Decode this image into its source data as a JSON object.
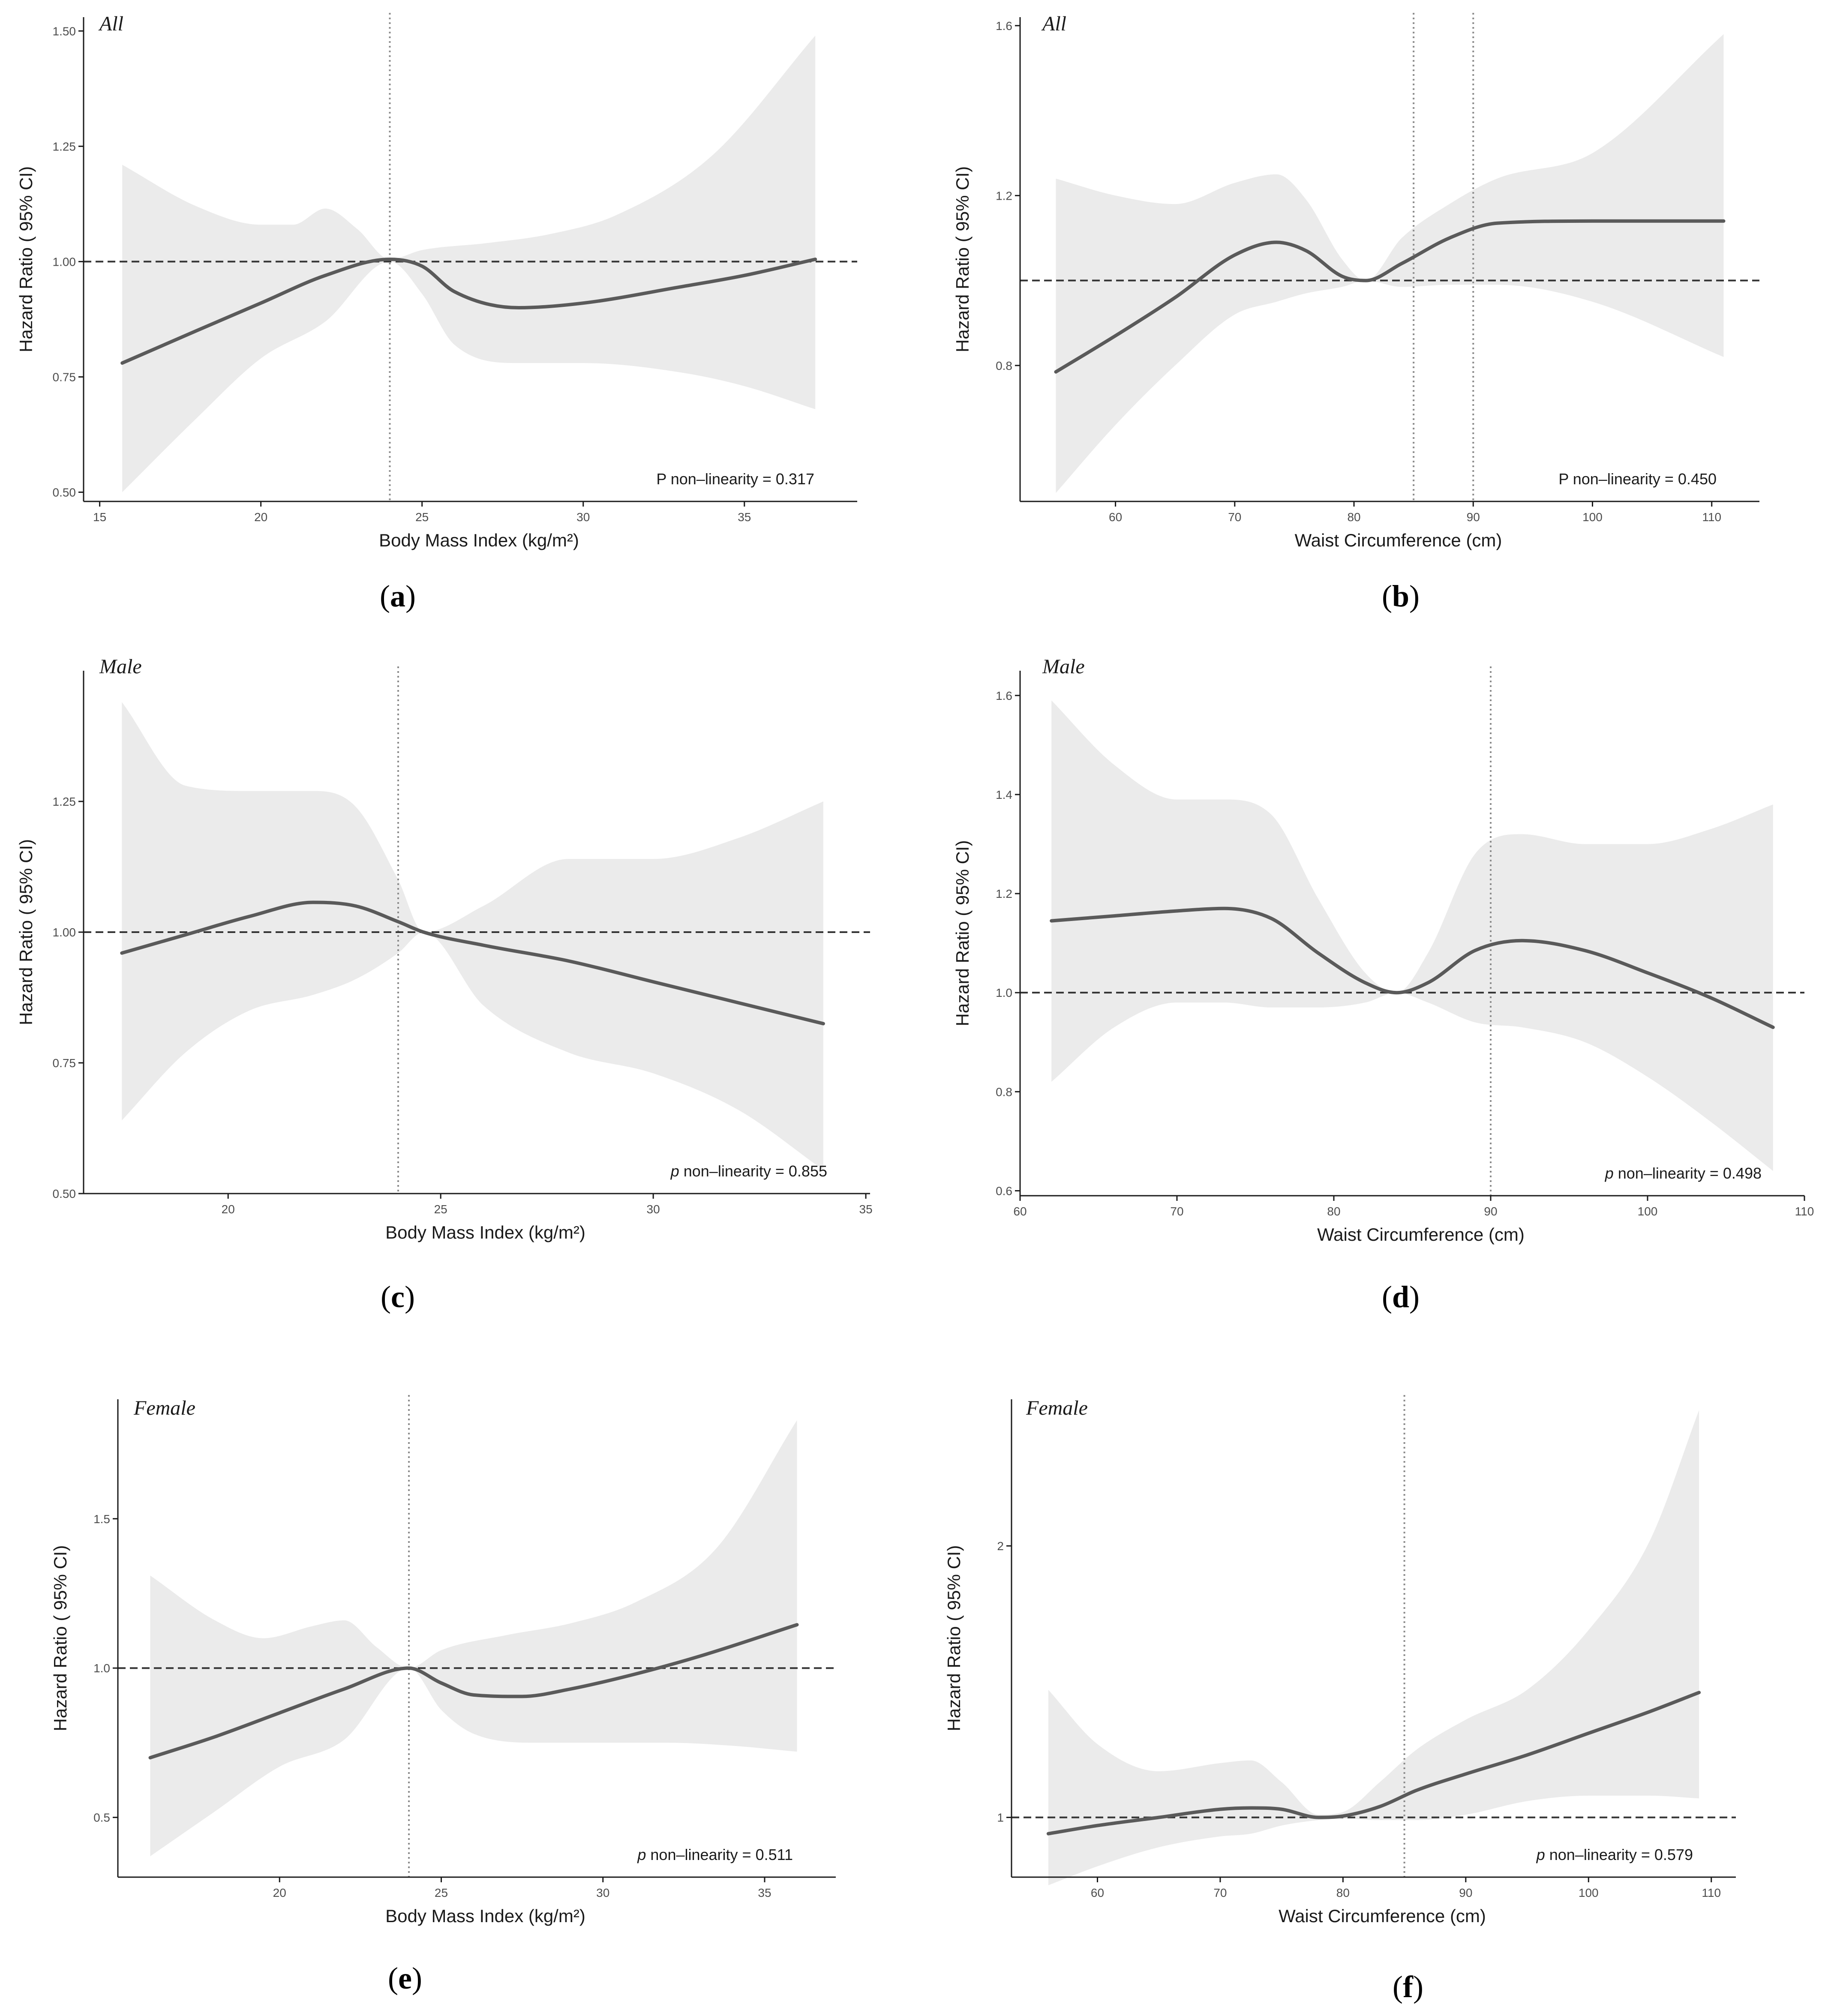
{
  "figure": {
    "panels": [
      "a",
      "b",
      "c",
      "d",
      "e",
      "f"
    ]
  },
  "chart_data": [
    {
      "id": "a",
      "type": "line",
      "caption_letter": "a",
      "group": "All",
      "xlabel": "Body Mass Index (kg/m²)",
      "ylabel": "Hazard Ratio ( 95% CI)",
      "xlim": [
        14.5,
        38.5
      ],
      "ylim": [
        0.48,
        1.53
      ],
      "xticks": [
        15,
        20,
        25,
        30,
        35
      ],
      "xtick_labels": [
        "15",
        "20",
        "25",
        "30",
        "35"
      ],
      "yticks": [
        0.5,
        0.75,
        1.0,
        1.25,
        1.5
      ],
      "ytick_labels": [
        "0.50",
        "0.75",
        "1.00",
        "1.25",
        "1.50"
      ],
      "vlines": [
        24
      ],
      "reference_y": 1.0,
      "p_prefix": "P",
      "p_text": " non–linearity = 0.317",
      "series": [
        {
          "name": "Hazard ratio",
          "x": [
            15.7,
            18,
            20,
            22,
            24,
            25,
            26,
            28,
            30,
            33,
            35,
            37.2
          ],
          "values": [
            0.78,
            0.85,
            0.91,
            0.97,
            1.005,
            0.99,
            0.935,
            0.9,
            0.91,
            0.945,
            0.97,
            1.005
          ]
        },
        {
          "name": "95% CI upper",
          "x": [
            15.7,
            18,
            20,
            21,
            22,
            23,
            24,
            25,
            27,
            29,
            31,
            34,
            37.2
          ],
          "values": [
            1.21,
            1.12,
            1.08,
            1.08,
            1.115,
            1.07,
            1.005,
            1.025,
            1.04,
            1.06,
            1.1,
            1.23,
            1.49
          ]
        },
        {
          "name": "95% CI lower",
          "x": [
            15.7,
            18,
            20,
            22,
            24,
            25,
            26,
            28,
            30,
            33,
            35,
            37.2
          ],
          "values": [
            0.5,
            0.66,
            0.79,
            0.87,
            1.0,
            0.93,
            0.82,
            0.78,
            0.78,
            0.76,
            0.73,
            0.68
          ]
        }
      ]
    },
    {
      "id": "b",
      "type": "line",
      "caption_letter": "b",
      "group": "All",
      "xlabel": "Waist Circumference (cm)",
      "ylabel": "Hazard Ratio ( 95% CI)",
      "xlim": [
        52,
        114
      ],
      "ylim": [
        0.48,
        1.62
      ],
      "xticks": [
        60,
        70,
        80,
        90,
        100,
        110
      ],
      "xtick_labels": [
        "60",
        "70",
        "80",
        "90",
        "100",
        "110"
      ],
      "yticks": [
        0.8,
        1.2,
        1.6
      ],
      "ytick_labels": [
        "0.8",
        "1.2",
        "1.6"
      ],
      "vlines": [
        85,
        90
      ],
      "reference_y": 1.0,
      "p_prefix": "P",
      "p_text": " non–linearity = 0.450",
      "series": [
        {
          "name": "Hazard ratio",
          "x": [
            55,
            60,
            65,
            70,
            73.5,
            76,
            79,
            81,
            84,
            88,
            92,
            100,
            111
          ],
          "values": [
            0.785,
            0.87,
            0.96,
            1.06,
            1.09,
            1.07,
            1.01,
            1.0,
            1.04,
            1.1,
            1.135,
            1.14,
            1.14
          ]
        },
        {
          "name": "95% CI upper",
          "x": [
            55,
            60,
            65,
            70,
            73.5,
            76,
            79,
            81,
            84,
            88,
            92,
            100,
            111
          ],
          "values": [
            1.24,
            1.2,
            1.18,
            1.23,
            1.25,
            1.19,
            1.05,
            1.0,
            1.1,
            1.18,
            1.24,
            1.3,
            1.58
          ]
        },
        {
          "name": "95% CI lower",
          "x": [
            55,
            60,
            65,
            70,
            73.5,
            76,
            79,
            81,
            84,
            88,
            92,
            100,
            111
          ],
          "values": [
            0.5,
            0.66,
            0.8,
            0.92,
            0.95,
            0.97,
            0.985,
            1.0,
            0.985,
            0.99,
            0.99,
            0.95,
            0.82
          ]
        }
      ]
    },
    {
      "id": "c",
      "type": "line",
      "caption_letter": "c",
      "group": "Male",
      "xlabel": "Body Mass Index (kg/m²)",
      "ylabel": "Hazard Ratio ( 95% CI)",
      "xlim": [
        16.6,
        35.1
      ],
      "ylim": [
        0.5,
        1.5
      ],
      "xticks": [
        20,
        25,
        30,
        35
      ],
      "xtick_labels": [
        "20",
        "25",
        "30",
        "35"
      ],
      "yticks": [
        0.5,
        0.75,
        1.0,
        1.25
      ],
      "ytick_labels": [
        "0.50",
        "0.75",
        "1.00",
        "1.25"
      ],
      "vlines": [
        24
      ],
      "reference_y": 1.0,
      "p_prefix": "p",
      "p_text": " non–linearity = 0.855",
      "series": [
        {
          "name": "Hazard ratio",
          "x": [
            17.5,
            19,
            20.5,
            22,
            23,
            24,
            24.6,
            26,
            28,
            30,
            32,
            34
          ],
          "values": [
            0.96,
            0.995,
            1.03,
            1.057,
            1.05,
            1.02,
            1.0,
            0.975,
            0.945,
            0.905,
            0.865,
            0.825
          ]
        },
        {
          "name": "95% CI upper",
          "x": [
            17.5,
            19,
            20.5,
            22,
            23,
            24,
            24.6,
            26,
            28,
            30,
            32,
            34
          ],
          "values": [
            1.44,
            1.28,
            1.27,
            1.27,
            1.24,
            1.1,
            1.0,
            1.05,
            1.14,
            1.14,
            1.18,
            1.25
          ]
        },
        {
          "name": "95% CI lower",
          "x": [
            17.5,
            19,
            20.5,
            22,
            23,
            24,
            24.6,
            26,
            28,
            30,
            32,
            34
          ],
          "values": [
            0.64,
            0.77,
            0.85,
            0.88,
            0.91,
            0.96,
            1.0,
            0.86,
            0.77,
            0.73,
            0.66,
            0.545
          ]
        }
      ]
    },
    {
      "id": "d",
      "type": "line",
      "caption_letter": "d",
      "group": "Male",
      "xlabel": "Waist Circumference (cm)",
      "ylabel": "Hazard Ratio ( 95% CI)",
      "xlim": [
        60,
        110
      ],
      "ylim": [
        0.59,
        1.65
      ],
      "xticks": [
        60,
        70,
        80,
        90,
        100,
        110
      ],
      "xtick_labels": [
        "60",
        "70",
        "80",
        "90",
        "100",
        "110"
      ],
      "yticks": [
        0.6,
        0.8,
        1.0,
        1.2,
        1.4,
        1.6
      ],
      "ytick_labels": [
        "0.6",
        "0.8",
        "1.0",
        "1.2",
        "1.4",
        "1.6"
      ],
      "vlines": [
        90
      ],
      "reference_y": 1.0,
      "p_prefix": "p",
      "p_text": " non–linearity = 0.498",
      "series": [
        {
          "name": "Hazard ratio",
          "x": [
            62,
            66,
            70,
            73,
            76,
            79,
            82,
            84,
            86,
            89,
            92,
            96,
            100,
            104,
            108
          ],
          "values": [
            1.145,
            1.155,
            1.165,
            1.17,
            1.15,
            1.08,
            1.02,
            1.0,
            1.02,
            1.085,
            1.105,
            1.085,
            1.04,
            0.99,
            0.93
          ]
        },
        {
          "name": "95% CI upper",
          "x": [
            62,
            66,
            70,
            73,
            76,
            79,
            82,
            84,
            86,
            89,
            92,
            96,
            100,
            104,
            108
          ],
          "values": [
            1.59,
            1.46,
            1.39,
            1.39,
            1.36,
            1.19,
            1.04,
            1.0,
            1.08,
            1.28,
            1.32,
            1.3,
            1.3,
            1.33,
            1.38
          ]
        },
        {
          "name": "95% CI lower",
          "x": [
            62,
            66,
            70,
            73,
            76,
            79,
            82,
            84,
            86,
            89,
            92,
            96,
            100,
            104,
            108
          ],
          "values": [
            0.82,
            0.93,
            0.98,
            0.98,
            0.97,
            0.97,
            0.98,
            1.0,
            0.98,
            0.94,
            0.93,
            0.9,
            0.83,
            0.74,
            0.64
          ]
        }
      ]
    },
    {
      "id": "e",
      "type": "line",
      "caption_letter": "e",
      "group": "Female",
      "xlabel": "Body Mass Index (kg/m²)",
      "ylabel": "Hazard Ratio ( 95% CI)",
      "xlim": [
        15,
        37.2
      ],
      "ylim": [
        0.3,
        1.9
      ],
      "xticks": [
        20,
        25,
        30,
        35
      ],
      "xtick_labels": [
        "20",
        "25",
        "30",
        "35"
      ],
      "yticks": [
        0.5,
        1.0,
        1.5
      ],
      "ytick_labels": [
        "0.5",
        "1.0",
        "1.5"
      ],
      "vlines": [
        24
      ],
      "reference_y": 1.0,
      "p_prefix": "p",
      "p_text": " non–linearity = 0.511",
      "series": [
        {
          "name": "Hazard ratio",
          "x": [
            16,
            18,
            20,
            22,
            24,
            25,
            26,
            27.5,
            29,
            31,
            33,
            36
          ],
          "values": [
            0.7,
            0.77,
            0.85,
            0.93,
            1.0,
            0.95,
            0.91,
            0.905,
            0.93,
            0.98,
            1.04,
            1.145
          ]
        },
        {
          "name": "95% CI upper",
          "x": [
            16,
            18,
            19.5,
            21,
            22,
            23,
            24,
            25,
            27,
            29,
            31,
            33.5,
            36
          ],
          "values": [
            1.31,
            1.16,
            1.1,
            1.14,
            1.16,
            1.07,
            1.0,
            1.06,
            1.11,
            1.15,
            1.22,
            1.4,
            1.83
          ]
        },
        {
          "name": "95% CI lower",
          "x": [
            16,
            18,
            20,
            22,
            24,
            25,
            26,
            28,
            30,
            32,
            34,
            36
          ],
          "values": [
            0.37,
            0.52,
            0.67,
            0.76,
            1.0,
            0.86,
            0.78,
            0.75,
            0.75,
            0.75,
            0.74,
            0.72
          ]
        }
      ]
    },
    {
      "id": "f",
      "type": "line",
      "caption_letter": "f",
      "group": "Female",
      "xlabel": "Waist Circumference (cm)",
      "ylabel": "Hazard Ratio ( 95% CI)",
      "xlim": [
        53,
        112
      ],
      "ylim": [
        0.78,
        2.54
      ],
      "xticks": [
        60,
        70,
        80,
        90,
        100,
        110
      ],
      "xtick_labels": [
        "60",
        "70",
        "80",
        "90",
        "100",
        "110"
      ],
      "yticks": [
        1,
        2
      ],
      "ytick_labels": [
        "1",
        "2"
      ],
      "vlines": [
        85
      ],
      "reference_y": 1.0,
      "p_prefix": "p",
      "p_text": " non–linearity = 0.579",
      "series": [
        {
          "name": "Hazard ratio",
          "x": [
            56,
            60,
            65,
            70,
            72.5,
            75,
            78,
            80,
            83,
            86,
            90,
            95,
            100,
            105,
            109
          ],
          "values": [
            0.94,
            0.97,
            1.0,
            1.03,
            1.035,
            1.03,
            1.0,
            1.005,
            1.04,
            1.1,
            1.16,
            1.23,
            1.31,
            1.39,
            1.46
          ]
        },
        {
          "name": "95% CI upper",
          "x": [
            56,
            60,
            65,
            70,
            72.5,
            75,
            78,
            80,
            83,
            86,
            90,
            95,
            100,
            105,
            109
          ],
          "values": [
            1.47,
            1.27,
            1.17,
            1.2,
            1.21,
            1.13,
            1.01,
            1.02,
            1.13,
            1.25,
            1.36,
            1.47,
            1.69,
            2.02,
            2.5
          ]
        },
        {
          "name": "95% CI lower",
          "x": [
            56,
            60,
            65,
            70,
            72.5,
            75,
            78,
            80,
            83,
            86,
            90,
            95,
            100,
            105,
            109
          ],
          "values": [
            0.75,
            0.82,
            0.89,
            0.93,
            0.94,
            0.97,
            0.99,
            0.995,
            0.99,
            0.99,
            1.01,
            1.06,
            1.08,
            1.08,
            1.07
          ]
        }
      ]
    }
  ]
}
